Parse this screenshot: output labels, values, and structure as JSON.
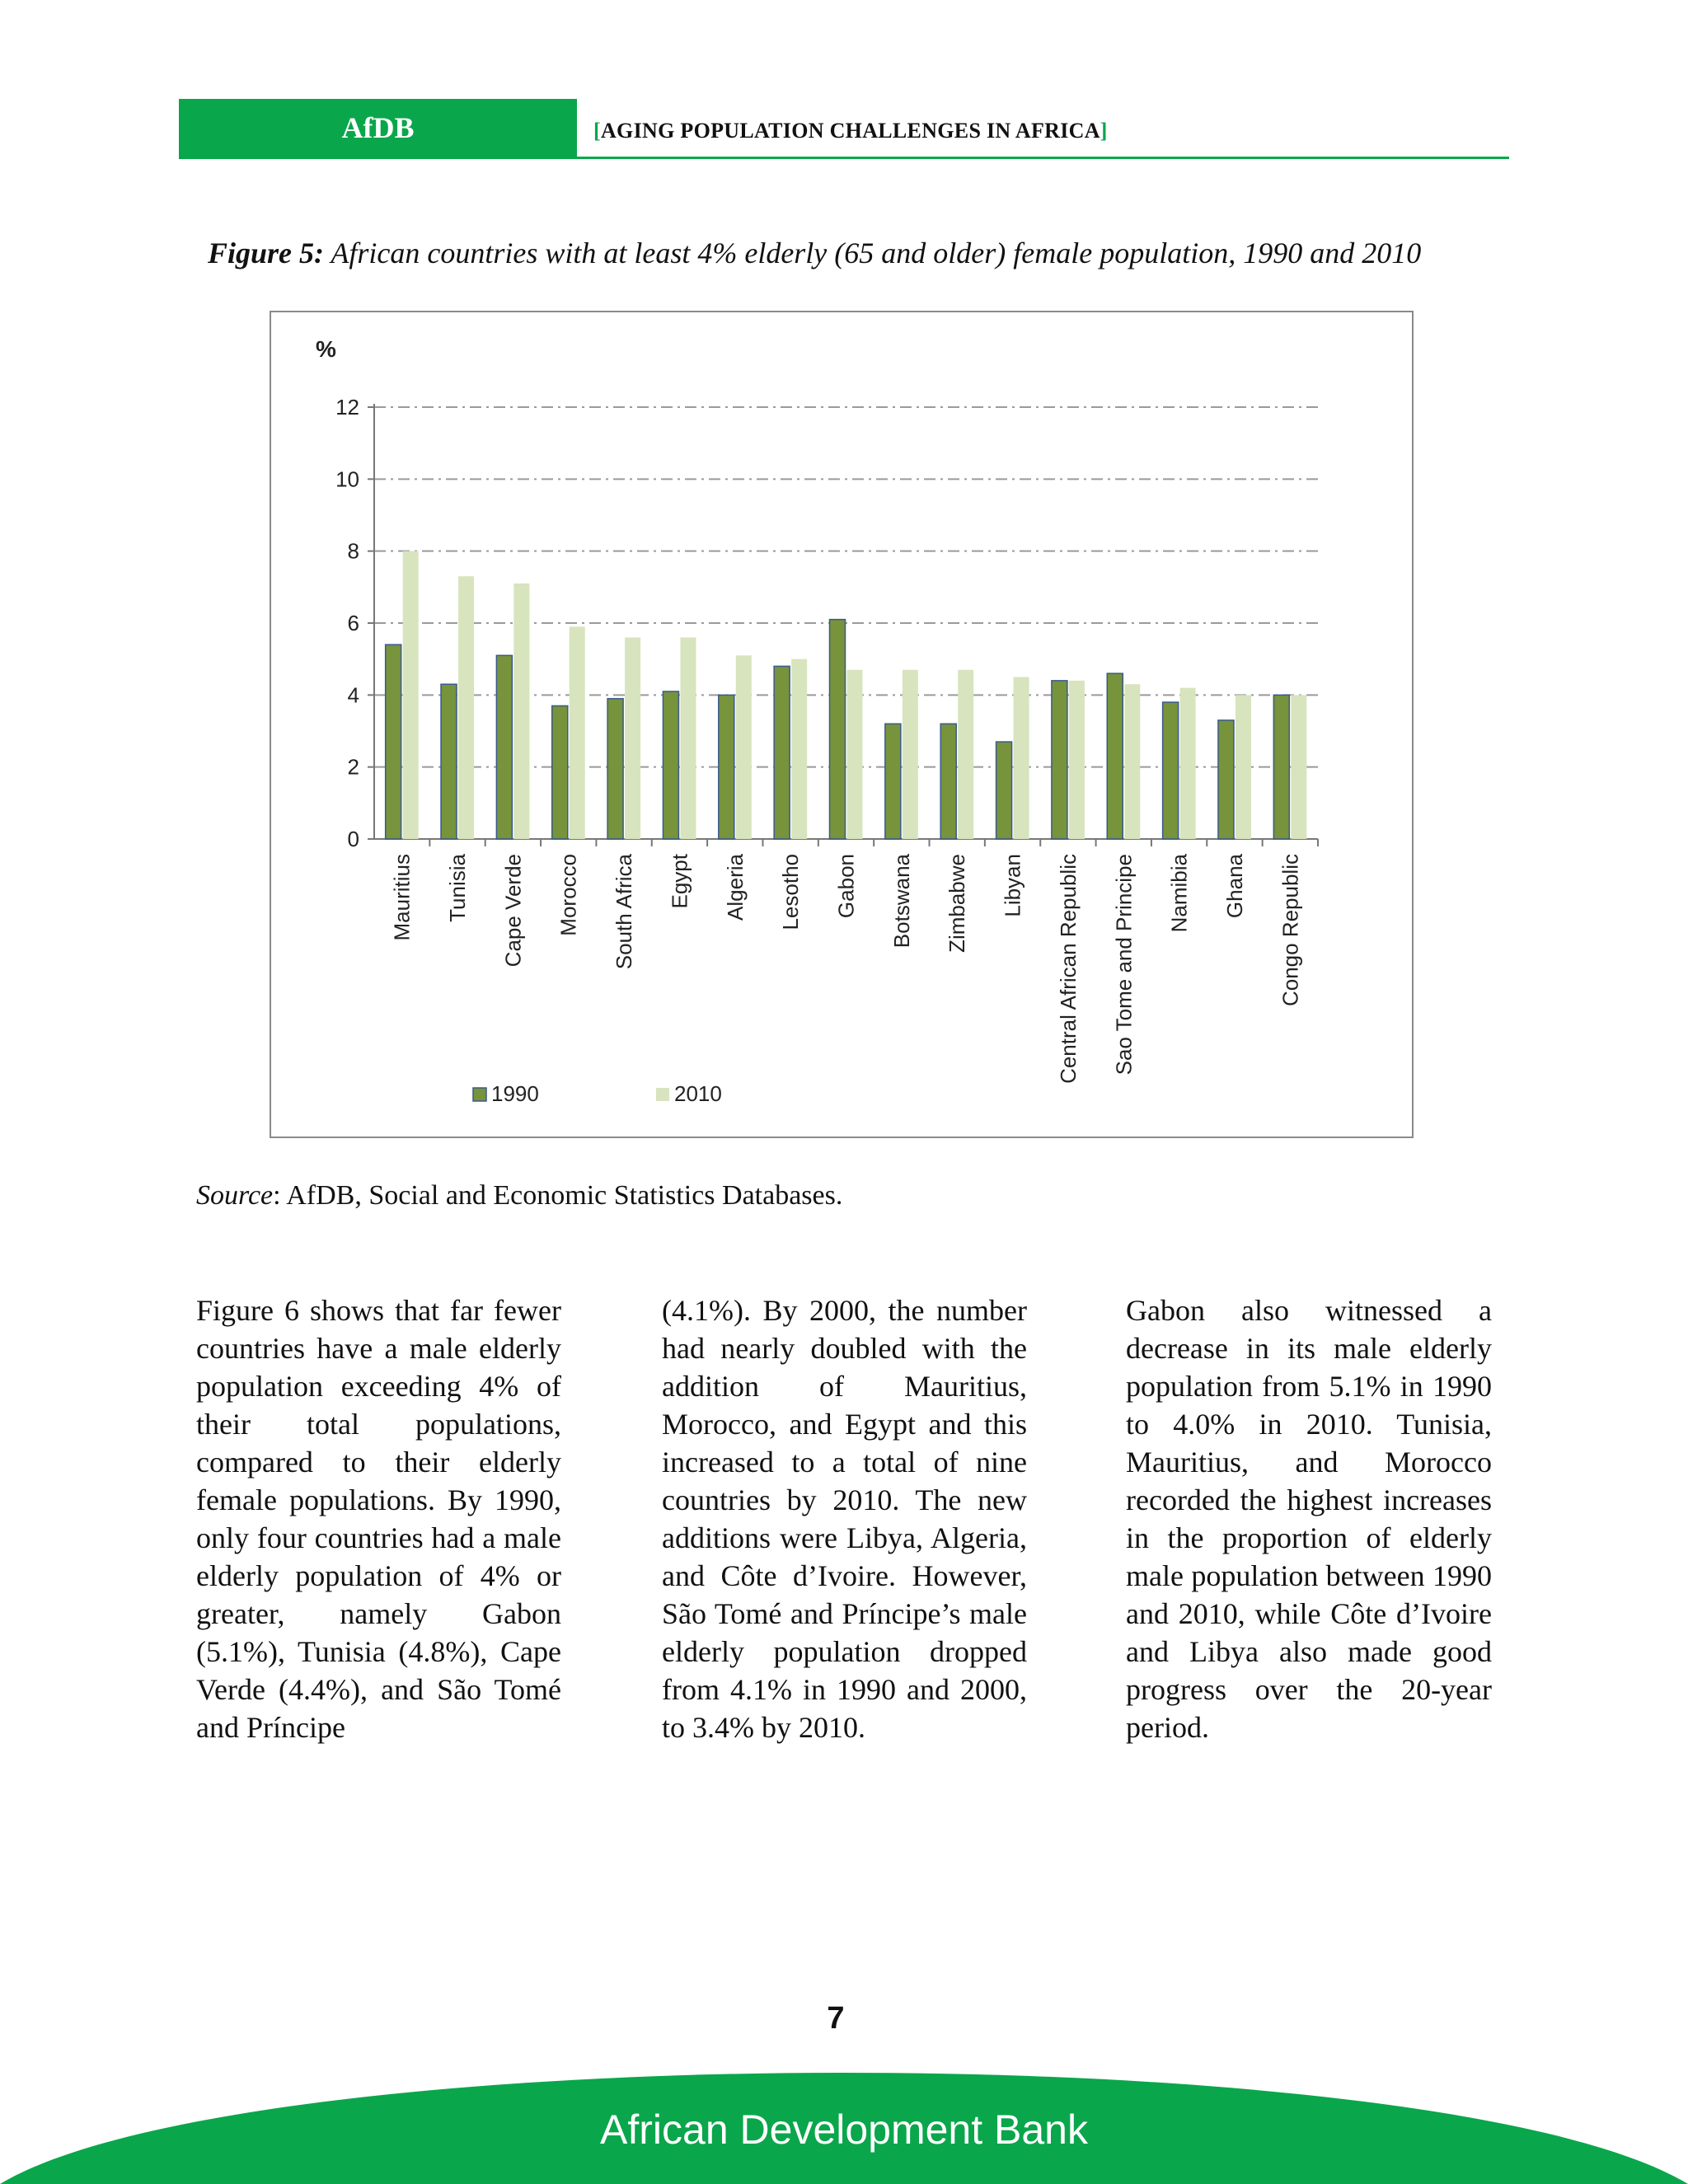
{
  "header": {
    "org": "AfDB",
    "bracket_open": "[",
    "title": "AGING POPULATION CHALLENGES IN AFRICA",
    "bracket_close": "]"
  },
  "figure": {
    "label": "Figure 5:",
    "caption": "African countries with at least 4% elderly (65 and older) female population, 1990 and 2010"
  },
  "chart_data": {
    "type": "bar",
    "title": "",
    "ylabel": "%",
    "xlabel": "",
    "ylim": [
      0,
      12
    ],
    "yticks": [
      "0",
      "2",
      "4",
      "6",
      "8",
      "10",
      "12"
    ],
    "grid": true,
    "legend_position": "bottom-left",
    "categories": [
      "Mauritius",
      "Tunisia",
      "Cape Verde",
      "Morocco",
      "South Africa",
      "Egypt",
      "Algeria",
      "Lesotho",
      "Gabon",
      "Botswana",
      "Zimbabwe",
      "Libyan",
      "Central African Republic",
      "Sao Tome and Principe",
      "Namibia",
      "Ghana",
      "Congo Republic"
    ],
    "series": [
      {
        "name": "1990",
        "color": "#77933c",
        "values": [
          5.4,
          4.3,
          5.1,
          3.7,
          3.9,
          4.1,
          4.0,
          4.8,
          6.1,
          3.2,
          3.2,
          2.7,
          4.4,
          4.6,
          3.8,
          3.3,
          4.0
        ]
      },
      {
        "name": "2010",
        "color": "#d7e4bd",
        "values": [
          8.0,
          7.3,
          7.1,
          5.9,
          5.6,
          5.6,
          5.1,
          5.0,
          4.7,
          4.7,
          4.7,
          4.5,
          4.4,
          4.3,
          4.2,
          4.0,
          4.0
        ]
      }
    ]
  },
  "source": {
    "label": "Source",
    "text": ": AfDB, Social and Economic Statistics Databases."
  },
  "body": {
    "col1": "Figure 6 shows that far fewer countries have a male elderly population exceeding 4% of their total populations, compared to their elderly female populations. By 1990, only four countries had a male elderly population of 4% or greater, namely Gabon (5.1%), Tunisia (4.8%), Cape Verde (4.4%), and São Tomé and Príncipe",
    "col2": "(4.1%). By 2000, the number had nearly doubled with the addition of Mauritius, Morocco, and Egypt and this increased to a total of nine countries by 2010. The new additions were Libya, Algeria, and Côte d’Ivoire. However, São Tomé and Príncipe’s male elderly population dropped from 4.1% in 1990 and 2000, to 3.4% by 2010.",
    "col3": "Gabon also witnessed a decrease in its male elderly population from 5.1% in 1990 to 4.0% in 2010. Tunisia, Mauritius, and Morocco recorded the highest increases in the proportion of elderly male population between 1990 and 2010, while Côte d’Ivoire and Libya also made good progress over the 20-year period."
  },
  "footer": {
    "page_number": "7",
    "org_name": "African Development Bank",
    "color": "#0aa64b"
  }
}
